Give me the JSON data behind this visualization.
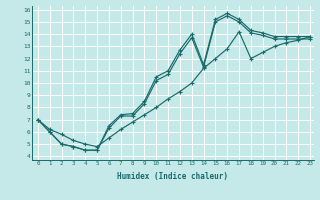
{
  "xlabel": "Humidex (Indice chaleur)",
  "bg_color": "#c5e8e8",
  "grid_color": "#ffffff",
  "line_color": "#1a6b6b",
  "xlim": [
    -0.5,
    23.3
  ],
  "ylim": [
    3.7,
    16.3
  ],
  "xticks": [
    0,
    1,
    2,
    3,
    4,
    5,
    6,
    7,
    8,
    9,
    10,
    11,
    12,
    13,
    14,
    15,
    16,
    17,
    18,
    19,
    20,
    21,
    22,
    23
  ],
  "yticks": [
    4,
    5,
    6,
    7,
    8,
    9,
    10,
    11,
    12,
    13,
    14,
    15,
    16
  ],
  "line1_x": [
    0,
    1,
    2,
    3,
    4,
    5,
    6,
    7,
    8,
    9,
    10,
    11,
    12,
    13,
    14,
    15,
    16,
    17,
    18,
    19,
    20,
    21,
    22,
    23
  ],
  "line1_y": [
    7.0,
    6.0,
    5.0,
    4.8,
    4.5,
    4.5,
    6.5,
    7.4,
    7.5,
    8.5,
    10.5,
    11.0,
    12.7,
    14.0,
    11.5,
    15.2,
    15.7,
    15.2,
    14.3,
    14.1,
    13.8,
    13.8,
    13.8,
    13.8
  ],
  "line2_x": [
    0,
    1,
    2,
    3,
    4,
    5,
    6,
    7,
    8,
    9,
    10,
    11,
    12,
    13,
    14,
    15,
    16,
    17,
    18,
    19,
    20,
    21,
    22,
    23
  ],
  "line2_y": [
    7.0,
    6.0,
    5.0,
    4.8,
    4.5,
    4.5,
    6.3,
    7.3,
    7.3,
    8.3,
    10.2,
    10.7,
    12.4,
    13.7,
    11.3,
    15.0,
    15.5,
    15.0,
    14.1,
    13.9,
    13.6,
    13.6,
    13.6,
    13.6
  ],
  "line3_x": [
    0,
    1,
    2,
    3,
    4,
    5,
    6,
    7,
    8,
    9,
    10,
    11,
    12,
    13,
    14,
    15,
    16,
    17,
    18,
    19,
    20,
    21,
    22,
    23
  ],
  "line3_y": [
    7.0,
    6.2,
    5.8,
    5.3,
    5.0,
    4.8,
    5.5,
    6.2,
    6.8,
    7.4,
    8.0,
    8.7,
    9.3,
    10.0,
    11.2,
    12.0,
    12.8,
    14.2,
    12.0,
    12.5,
    13.0,
    13.3,
    13.5,
    13.8
  ]
}
